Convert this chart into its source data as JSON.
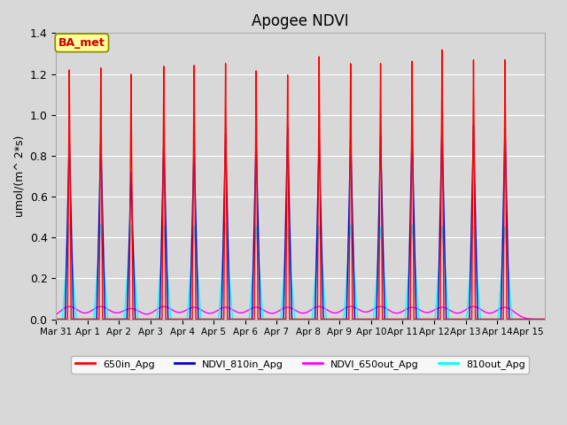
{
  "title": "Apogee NDVI",
  "ylabel": "umol/(m^ 2*s)",
  "xlabel": "",
  "annotation_text": "BA_met",
  "annotation_color": "#cc0000",
  "annotation_bg": "#ffff99",
  "annotation_border": "#888800",
  "xlim_days": [
    0.0,
    15.5
  ],
  "ylim": [
    0,
    1.4
  ],
  "yticks": [
    0.0,
    0.2,
    0.4,
    0.6,
    0.8,
    1.0,
    1.2,
    1.4
  ],
  "xtick_labels": [
    "Mar 31",
    "Apr 1",
    "Apr 2",
    "Apr 3",
    "Apr 4",
    "Apr 5",
    "Apr 6",
    "Apr 7",
    "Apr 8",
    "Apr 9",
    "Apr 10",
    "Apr 11",
    "Apr 12",
    "Apr 13",
    "Apr 14",
    "Apr 15"
  ],
  "xtick_positions": [
    0,
    1,
    2,
    3,
    4,
    5,
    6,
    7,
    8,
    9,
    10,
    11,
    12,
    13,
    14,
    15
  ],
  "line_650in_color": "#ff0000",
  "line_810in_color": "#0000cc",
  "line_650out_color": "#ff00ff",
  "line_810out_color": "#00ffff",
  "line_width": 1.0,
  "bg_color": "#d8d8d8",
  "plot_bg_color": "#d8d8d8",
  "grid_color": "#ffffff",
  "legend_labels": [
    "650in_Apg",
    "NDVI_810in_Apg",
    "NDVI_650out_Apg",
    "810out_Apg"
  ],
  "n_spikes": 15,
  "spike_centers": [
    0.42,
    1.42,
    2.38,
    3.42,
    4.38,
    5.38,
    6.35,
    7.35,
    8.35,
    9.35,
    10.3,
    11.3,
    12.25,
    13.25,
    14.25
  ],
  "spike_650in_peaks": [
    1.22,
    1.23,
    1.2,
    1.24,
    1.245,
    1.255,
    1.22,
    1.2,
    1.29,
    1.255,
    1.255,
    1.265,
    1.32,
    1.27,
    1.27
  ],
  "spike_810in_peaks": [
    0.9,
    0.9,
    0.72,
    0.9,
    0.86,
    0.91,
    0.9,
    0.94,
    0.9,
    0.91,
    0.9,
    0.93,
    0.96,
    0.95,
    0.95
  ],
  "spike_650out_peaks": [
    0.062,
    0.062,
    0.052,
    0.062,
    0.058,
    0.058,
    0.058,
    0.058,
    0.062,
    0.062,
    0.062,
    0.058,
    0.058,
    0.062,
    0.058
  ],
  "spike_810out_peaks": [
    0.465,
    0.462,
    0.462,
    0.455,
    0.455,
    0.468,
    0.455,
    0.445,
    0.455,
    0.462,
    0.452,
    0.462,
    0.455,
    0.455,
    0.452
  ],
  "spike_narrow_half": 0.055,
  "spike_medium_half": 0.13,
  "spike_broad_half": 0.22,
  "spike_magenta_half": 0.3
}
